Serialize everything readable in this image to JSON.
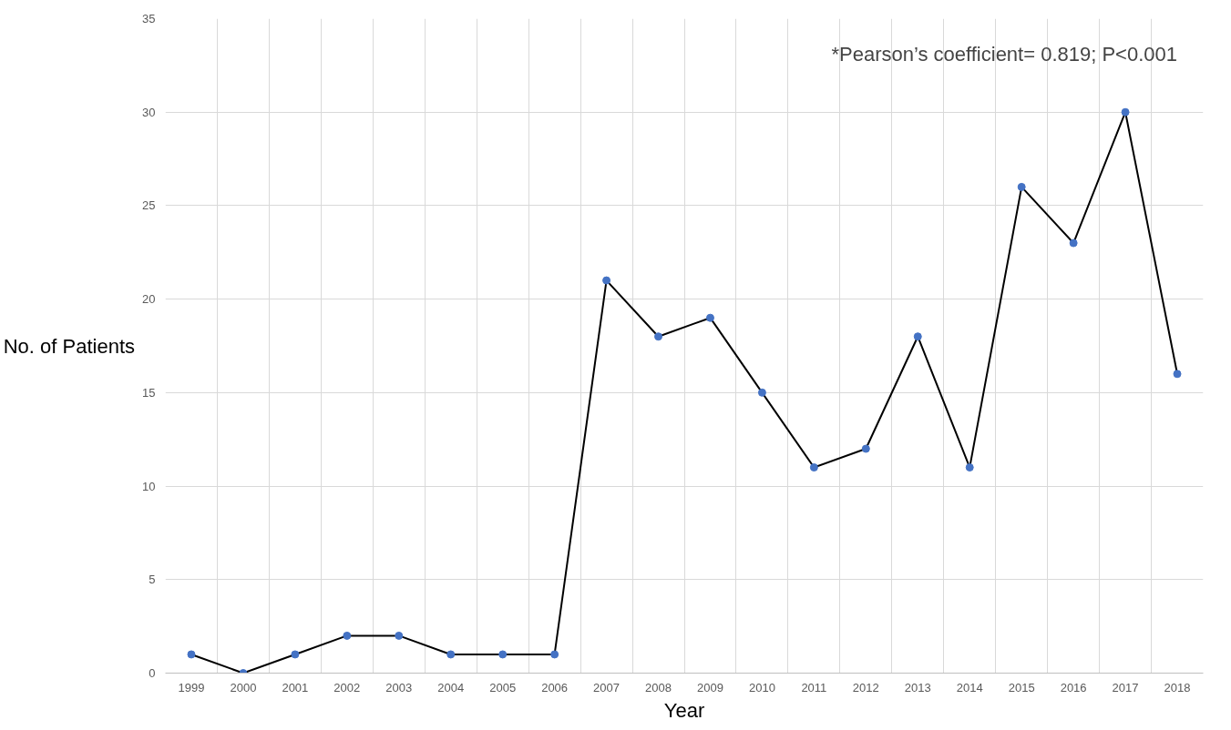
{
  "chart_data": {
    "type": "line",
    "xlabel": "Year",
    "ylabel": "No. of Patients",
    "categories": [
      "1999",
      "2000",
      "2001",
      "2002",
      "2003",
      "2004",
      "2005",
      "2006",
      "2007",
      "2008",
      "2009",
      "2010",
      "2011",
      "2012",
      "2013",
      "2014",
      "2015",
      "2016",
      "2017",
      "2018"
    ],
    "series": [
      {
        "color": "#4472c4",
        "values": [
          1,
          0,
          1,
          2,
          2,
          1,
          1,
          1,
          21,
          18,
          19,
          15,
          11,
          12,
          18,
          11,
          26,
          23,
          30,
          16
        ]
      }
    ],
    "ylim": [
      0,
      35
    ],
    "yticks": [
      0,
      5,
      10,
      15,
      20,
      25,
      30,
      35
    ],
    "grid": true,
    "marker": "circle",
    "line_style": "solid",
    "annotations": [
      "*Pearson’s coefficient= 0.819; P<0.001"
    ]
  }
}
